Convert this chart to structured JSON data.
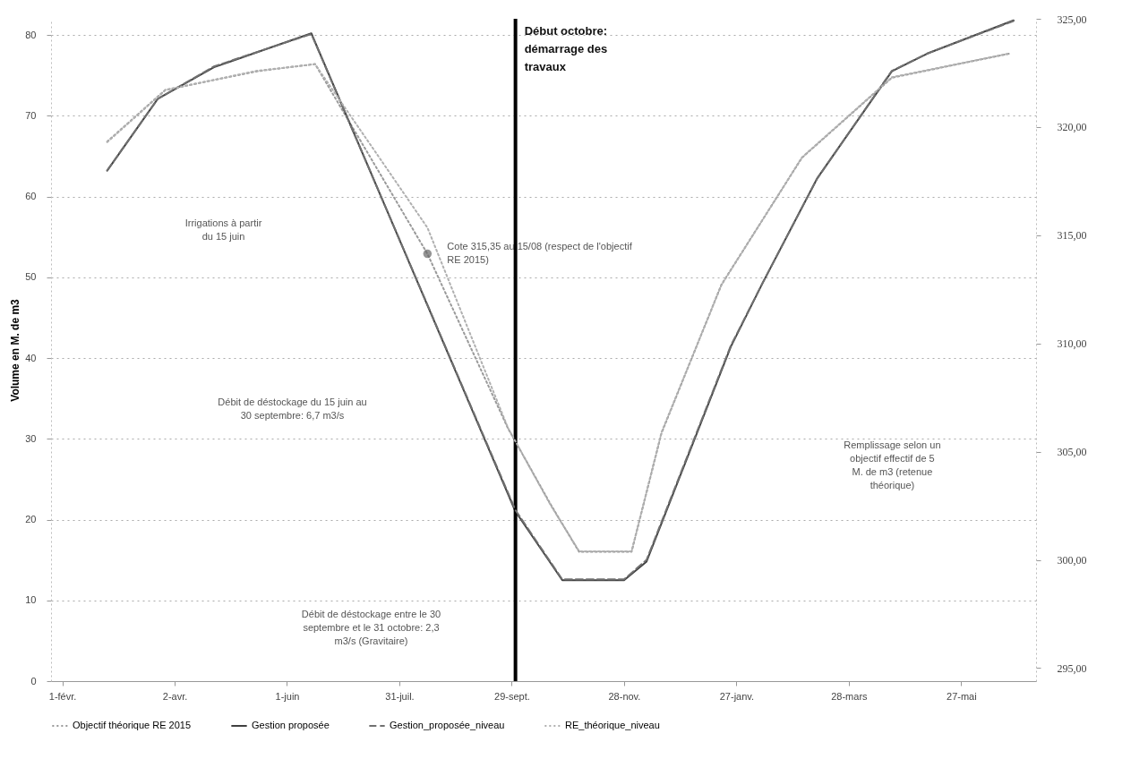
{
  "chart_data": {
    "type": "line",
    "ylabel": "Volume en M. de m3",
    "xlim": [
      "2014-01-26",
      "2015-07-06"
    ],
    "ylim": [
      0,
      82
    ],
    "y2lim": [
      294.4,
      325
    ],
    "xticks": [
      {
        "value": "2014-02-01",
        "label": "1-févr."
      },
      {
        "value": "2014-04-02",
        "label": "2-avr."
      },
      {
        "value": "2014-06-01",
        "label": "1-juin"
      },
      {
        "value": "2014-07-31",
        "label": "31-juil."
      },
      {
        "value": "2014-09-29",
        "label": "29-sept."
      },
      {
        "value": "2014-11-28",
        "label": "28-nov."
      },
      {
        "value": "2015-01-27",
        "label": "27-janv."
      },
      {
        "value": "2015-03-28",
        "label": "28-mars"
      },
      {
        "value": "2015-05-27",
        "label": "27-mai"
      }
    ],
    "yticks": [
      0,
      10,
      20,
      30,
      40,
      50,
      60,
      70,
      80
    ],
    "y2ticks": [
      {
        "value": 295,
        "label": "295,00"
      },
      {
        "value": 300,
        "label": "300,00"
      },
      {
        "value": 305,
        "label": "305,00"
      },
      {
        "value": 310,
        "label": "310,00"
      },
      {
        "value": 315,
        "label": "315,00"
      },
      {
        "value": 320,
        "label": "320,00"
      },
      {
        "value": 325,
        "label": "325,00"
      }
    ],
    "grid": "y",
    "legend": "bottom",
    "series": [
      {
        "name": "Objectif théorique RE 2015",
        "color": "#9a9a9a",
        "line_style": "dotted",
        "x": [
          "2014-02-25",
          "2014-03-28",
          "2014-05-16",
          "2014-06-16",
          "2014-08-15",
          "2014-09-27",
          "2014-10-20",
          "2014-11-04",
          "2014-12-02",
          "2014-12-18",
          "2015-01-19",
          "2015-03-03",
          "2015-04-20",
          "2015-06-22"
        ],
        "values": [
          66.8,
          73.2,
          75.5,
          76.4,
          52.9,
          31.3,
          21.8,
          16,
          16,
          30.7,
          49.1,
          64.8,
          74.7,
          77.7
        ]
      },
      {
        "name": "Gestion proposée",
        "color": "#404040",
        "line_style": "solid",
        "x": [
          "2014-02-25",
          "2014-03-24",
          "2014-04-23",
          "2014-06-14",
          "2014-10-01",
          "2014-10-26",
          "2014-11-28",
          "2014-12-10",
          "2015-01-24",
          "2015-02-10",
          "2015-03-11",
          "2015-04-20",
          "2015-05-09",
          "2015-06-24"
        ],
        "values": [
          63.2,
          72.1,
          76,
          80.2,
          21,
          12.5,
          12.5,
          14.8,
          41.4,
          49.3,
          62.2,
          75.5,
          77.7,
          81.8
        ]
      },
      {
        "name": "Gestion_proposée_niveau",
        "color": "#707070",
        "line_style": "dashed",
        "axis": "y2",
        "x": [
          "2014-02-25",
          "2014-03-24",
          "2014-04-23",
          "2014-06-14",
          "2014-10-01",
          "2014-10-26",
          "2014-11-28",
          "2014-12-10",
          "2015-01-24",
          "2015-02-10",
          "2015-03-11",
          "2015-04-20",
          "2015-05-09",
          "2015-06-24"
        ],
        "values": [
          318,
          321.3,
          322.8,
          324.3,
          302.3,
          299.1,
          299.1,
          300,
          309.9,
          312.8,
          317.6,
          322.6,
          323.4,
          324.9
        ]
      },
      {
        "name": "RE_théorique_niveau",
        "color": "#b0b0b0",
        "line_style": "dotted",
        "axis": "y2",
        "x": [
          "2014-02-25",
          "2014-03-28",
          "2014-05-16",
          "2014-06-16",
          "2014-08-15",
          "2014-09-27",
          "2014-10-20",
          "2014-11-04",
          "2014-12-02",
          "2014-12-18",
          "2015-01-19",
          "2015-03-03",
          "2015-04-20",
          "2015-06-22"
        ],
        "values": [
          319.3,
          321.7,
          322.6,
          322.9,
          315.35,
          306.1,
          302.5,
          300.4,
          300.4,
          305.9,
          312.7,
          318.6,
          322.3,
          323.4
        ]
      }
    ],
    "ref_lines": [
      {
        "axis": "x",
        "value": "2014-10-01",
        "label": "Début octobre: démarrage des travaux",
        "color": "#000000"
      }
    ],
    "annotations": [
      "Irrigations à partir du 15 juin",
      "Débit de déstockage du 15 juin au 30 septembre: 6,7 m3/s",
      "Débit de déstockage entre le 30 septembre et le 31 octobre: 2,3 m3/s (Gravitaire)",
      {
        "text": "Cote 315,35 au 15/08 (respect de l'objectif RE 2015)",
        "x": "2014-08-15",
        "y": 52.9
      },
      "Remplissage selon un objectif effectif de 5 M. de m3 (retenue théorique)"
    ]
  }
}
